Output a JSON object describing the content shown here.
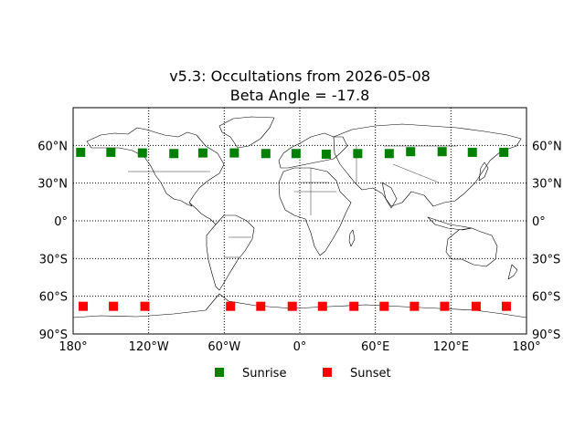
{
  "chart_data": {
    "type": "scatter",
    "title": "v5.3: Occultations from 2026-05-08",
    "subtitle": "Beta Angle = -17.8",
    "projection": "equirectangular",
    "xlim": [
      -180,
      180
    ],
    "ylim": [
      -90,
      90
    ],
    "grid": true,
    "grid_style": "dotted",
    "x_ticks": [
      {
        "value": -180,
        "label": "180°"
      },
      {
        "value": -120,
        "label": "120°W"
      },
      {
        "value": -60,
        "label": "60°W"
      },
      {
        "value": 0,
        "label": "0°"
      },
      {
        "value": 60,
        "label": "60°E"
      },
      {
        "value": 120,
        "label": "120°E"
      },
      {
        "value": 180,
        "label": "180°"
      }
    ],
    "y_ticks": [
      {
        "value": 60,
        "label": "60°N"
      },
      {
        "value": 30,
        "label": "30°N"
      },
      {
        "value": 0,
        "label": "0°"
      },
      {
        "value": -30,
        "label": "30°S"
      },
      {
        "value": -60,
        "label": "60°S"
      },
      {
        "value": -90,
        "label": "90°S"
      }
    ],
    "legend_position": "bottom",
    "series": [
      {
        "name": "Sunrise",
        "color": "#008000",
        "marker": "square",
        "points": [
          {
            "lon": -174,
            "lat": 54.5
          },
          {
            "lon": -150,
            "lat": 54.5
          },
          {
            "lon": -125,
            "lat": 54.0
          },
          {
            "lon": -100,
            "lat": 53.5
          },
          {
            "lon": -77,
            "lat": 54.0
          },
          {
            "lon": -52,
            "lat": 54.0
          },
          {
            "lon": -27,
            "lat": 53.5
          },
          {
            "lon": -3,
            "lat": 53.5
          },
          {
            "lon": 21,
            "lat": 53.0
          },
          {
            "lon": 46,
            "lat": 53.5
          },
          {
            "lon": 71,
            "lat": 53.5
          },
          {
            "lon": 88,
            "lat": 55.0
          },
          {
            "lon": 113,
            "lat": 55.0
          },
          {
            "lon": 137,
            "lat": 54.5
          },
          {
            "lon": 162,
            "lat": 54.5
          }
        ]
      },
      {
        "name": "Sunset",
        "color": "#ff0000",
        "marker": "square",
        "points": [
          {
            "lon": -172,
            "lat": -68
          },
          {
            "lon": -148,
            "lat": -68
          },
          {
            "lon": -123,
            "lat": -68
          },
          {
            "lon": -55,
            "lat": -68
          },
          {
            "lon": -31,
            "lat": -68
          },
          {
            "lon": -6,
            "lat": -68
          },
          {
            "lon": 18,
            "lat": -68
          },
          {
            "lon": 43,
            "lat": -68
          },
          {
            "lon": 67,
            "lat": -68
          },
          {
            "lon": 91,
            "lat": -68
          },
          {
            "lon": 115,
            "lat": -68
          },
          {
            "lon": 140,
            "lat": -68
          },
          {
            "lon": 164,
            "lat": -68
          }
        ]
      }
    ]
  }
}
